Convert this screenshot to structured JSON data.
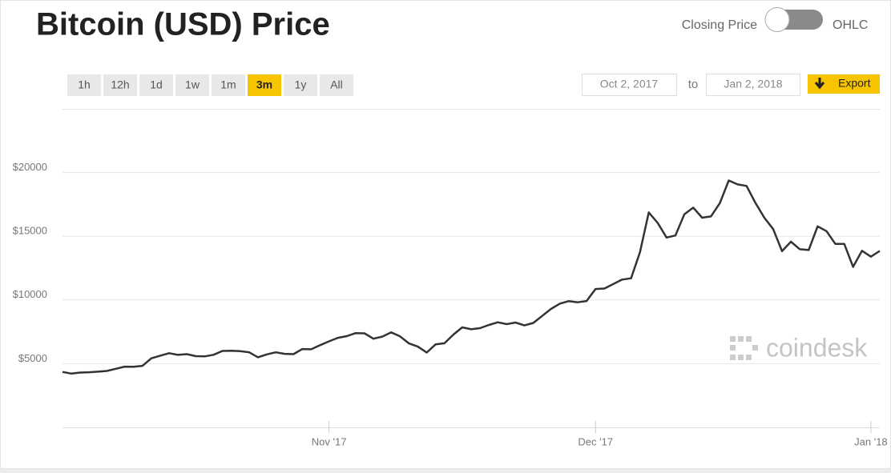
{
  "header": {
    "title": "Bitcoin (USD) Price",
    "toggle_left": "Closing Price",
    "toggle_right": "OHLC"
  },
  "ranges": [
    "1h",
    "12h",
    "1d",
    "1w",
    "1m",
    "3m",
    "1y",
    "All"
  ],
  "active_range": "3m",
  "date_from": "Oct 2, 2017",
  "date_sep": "to",
  "date_to": "Jan 2, 2018",
  "export": "Export",
  "watermark": "coindesk",
  "chart_data": {
    "type": "line",
    "x": [
      "2017-10-02",
      "2017-10-03",
      "2017-10-04",
      "2017-10-05",
      "2017-10-06",
      "2017-10-07",
      "2017-10-08",
      "2017-10-09",
      "2017-10-10",
      "2017-10-11",
      "2017-10-12",
      "2017-10-13",
      "2017-10-14",
      "2017-10-15",
      "2017-10-16",
      "2017-10-17",
      "2017-10-18",
      "2017-10-19",
      "2017-10-20",
      "2017-10-21",
      "2017-10-22",
      "2017-10-23",
      "2017-10-24",
      "2017-10-25",
      "2017-10-26",
      "2017-10-27",
      "2017-10-28",
      "2017-10-29",
      "2017-10-30",
      "2017-10-31",
      "2017-11-01",
      "2017-11-02",
      "2017-11-03",
      "2017-11-04",
      "2017-11-05",
      "2017-11-06",
      "2017-11-07",
      "2017-11-08",
      "2017-11-09",
      "2017-11-10",
      "2017-11-11",
      "2017-11-12",
      "2017-11-13",
      "2017-11-14",
      "2017-11-15",
      "2017-11-16",
      "2017-11-17",
      "2017-11-18",
      "2017-11-19",
      "2017-11-20",
      "2017-11-21",
      "2017-11-22",
      "2017-11-23",
      "2017-11-24",
      "2017-11-25",
      "2017-11-26",
      "2017-11-27",
      "2017-11-28",
      "2017-11-29",
      "2017-11-30",
      "2017-12-01",
      "2017-12-02",
      "2017-12-03",
      "2017-12-04",
      "2017-12-05",
      "2017-12-06",
      "2017-12-07",
      "2017-12-08",
      "2017-12-09",
      "2017-12-10",
      "2017-12-11",
      "2017-12-12",
      "2017-12-13",
      "2017-12-14",
      "2017-12-15",
      "2017-12-16",
      "2017-12-17",
      "2017-12-18",
      "2017-12-19",
      "2017-12-20",
      "2017-12-21",
      "2017-12-22",
      "2017-12-23",
      "2017-12-24",
      "2017-12-25",
      "2017-12-26",
      "2017-12-27",
      "2017-12-28",
      "2017-12-29",
      "2017-12-30",
      "2017-12-31",
      "2018-01-01",
      "2018-01-02"
    ],
    "series": [
      {
        "name": "Closing Price",
        "color": "#333333",
        "values": [
          4350,
          4220,
          4300,
          4330,
          4370,
          4430,
          4600,
          4770,
          4760,
          4830,
          5420,
          5630,
          5820,
          5690,
          5750,
          5590,
          5570,
          5700,
          6000,
          6010,
          5980,
          5900,
          5500,
          5730,
          5890,
          5770,
          5750,
          6150,
          6130,
          6450,
          6750,
          7030,
          7160,
          7400,
          7380,
          6960,
          7120,
          7460,
          7140,
          6590,
          6340,
          5870,
          6520,
          6600,
          7280,
          7850,
          7700,
          7790,
          8040,
          8250,
          8100,
          8230,
          8000,
          8200,
          8750,
          9300,
          9720,
          9910,
          9820,
          9920,
          10860,
          10900,
          11250,
          11600,
          11700,
          13750,
          16870,
          16050,
          14900,
          15060,
          16730,
          17250,
          16460,
          16560,
          17600,
          19380,
          19070,
          18950,
          17620,
          16460,
          15560,
          13830,
          14570,
          13980,
          13920,
          15780,
          15400,
          14400,
          14400,
          12600,
          13860,
          13400,
          13850
        ]
      }
    ],
    "xlim": [
      "2017-10-02",
      "2018-01-02"
    ],
    "xticks": [
      {
        "value": "2017-11-01",
        "label": "Nov '17"
      },
      {
        "value": "2017-12-01",
        "label": "Dec '17"
      },
      {
        "value": "2018-01-01",
        "label": "Jan '18"
      }
    ],
    "ylim": [
      0,
      25000
    ],
    "yticks": [
      {
        "value": 5000,
        "label": "$5000"
      },
      {
        "value": 10000,
        "label": "$10000"
      },
      {
        "value": 15000,
        "label": "$15000"
      },
      {
        "value": 20000,
        "label": "$20000"
      }
    ],
    "grid": true
  }
}
